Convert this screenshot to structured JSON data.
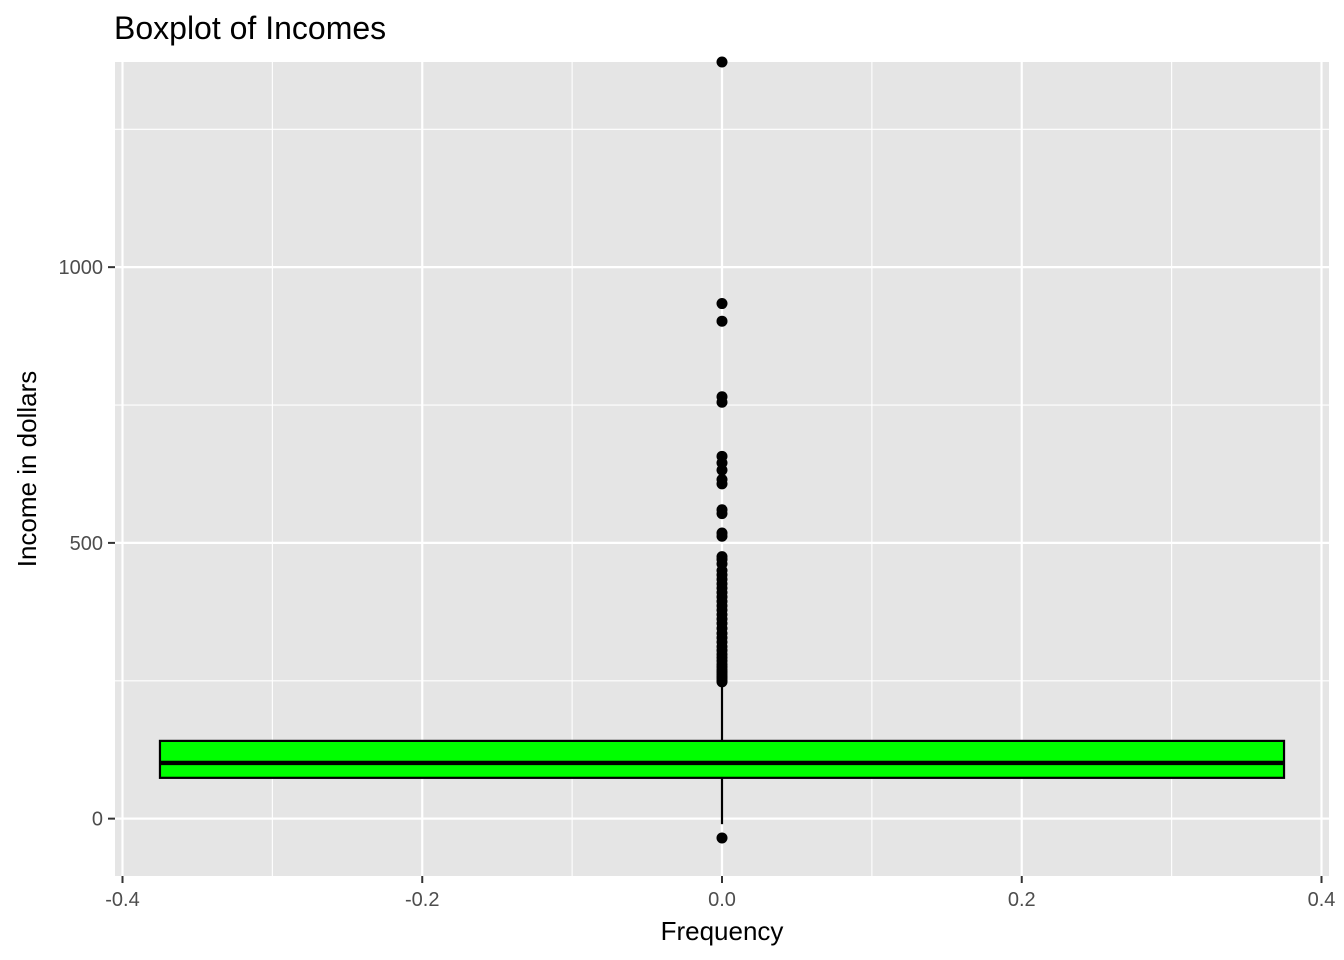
{
  "chart_data": {
    "type": "boxplot",
    "title": "Boxplot of Incomes",
    "xlabel": "Frequency",
    "ylabel": "Income in dollars",
    "xlim": [
      -0.405,
      0.405
    ],
    "ylim": [
      -104,
      1372
    ],
    "x_ticks": [
      -0.4,
      -0.2,
      0.0,
      0.2,
      0.4
    ],
    "x_tick_labels": [
      "-0.4",
      "-0.2",
      "0.0",
      "0.2",
      "0.4"
    ],
    "y_ticks": [
      0,
      500,
      1000
    ],
    "y_tick_labels": [
      "0",
      "500",
      "1000"
    ],
    "grid": true,
    "legend": "none",
    "box": {
      "x_min": -0.375,
      "x_max": 0.375,
      "q1": 74,
      "median": 101,
      "q3": 141,
      "whisker_low": -10,
      "whisker_high": 244,
      "fill_color": "#00ff00"
    },
    "outliers": [
      -35,
      248,
      251,
      255,
      258,
      262,
      266,
      270,
      275,
      280,
      286,
      292,
      298,
      305,
      312,
      320,
      328,
      336,
      345,
      354,
      362,
      370,
      378,
      386,
      394,
      402,
      410,
      418,
      426,
      434,
      442,
      450,
      462,
      470,
      475,
      512,
      518,
      553,
      560,
      607,
      615,
      632,
      645,
      657,
      755,
      765,
      902,
      934,
      1372
    ],
    "colors": {
      "panel_background": "#e5e5e5",
      "grid_line": "#ffffff",
      "box_fill": "#00ff00",
      "box_outline": "#000000",
      "outlier": "#000000"
    }
  }
}
